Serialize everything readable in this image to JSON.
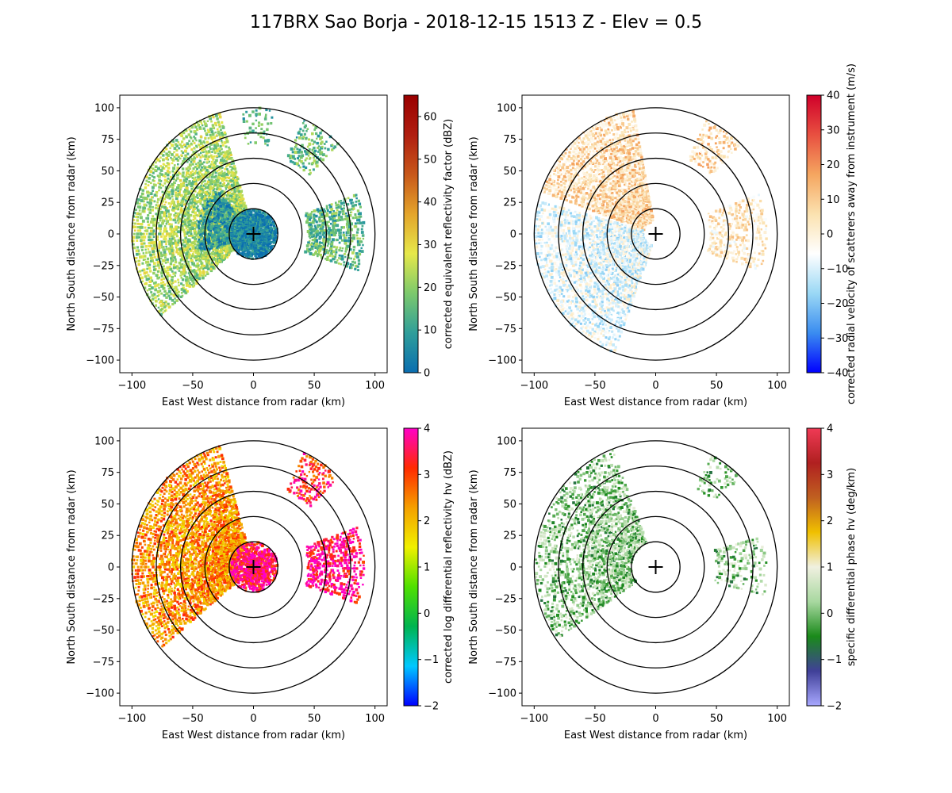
{
  "figure": {
    "title": "117BRX Sao Borja - 2018-12-15 1513 Z -  Elev = 0.5"
  },
  "chart_data": [
    {
      "type": "heatmap",
      "field": "reflectivity",
      "title": "",
      "xlabel": "East West distance from radar (km)",
      "ylabel": "North South distance from radar (km)",
      "xlim": [
        -110,
        110
      ],
      "ylim": [
        -110,
        110
      ],
      "xticks": [
        -100,
        -50,
        0,
        50,
        100
      ],
      "yticks": [
        -100,
        -75,
        -50,
        -25,
        0,
        25,
        50,
        75,
        100
      ],
      "range_rings_km": [
        20,
        40,
        60,
        80,
        100
      ],
      "radar_marker": "+",
      "colorbar": {
        "label": "corrected equivalent reflectivity factor (dBZ)",
        "min": 0,
        "max": 65,
        "ticks": [
          0,
          10,
          20,
          30,
          40,
          50,
          60
        ],
        "colormap": [
          "#0a6eb0",
          "#2f9e9a",
          "#7cc96c",
          "#e6e84a",
          "#e4a52b",
          "#c8581a",
          "#b01e10",
          "#9a0000"
        ]
      },
      "echo_regions": [
        {
          "sector": "west",
          "az_from": 230,
          "az_to": 345,
          "r_from": 0,
          "r_to": 100,
          "value": 22,
          "density": 0.85
        },
        {
          "sector": "center",
          "az_from": 0,
          "az_to": 360,
          "r_from": 0,
          "r_to": 18,
          "value": 4,
          "density": 0.6
        },
        {
          "sector": "west-inner",
          "az_from": 250,
          "az_to": 320,
          "r_from": 15,
          "r_to": 45,
          "value": 8,
          "density": 0.7
        },
        {
          "sector": "east",
          "az_from": 70,
          "az_to": 110,
          "r_from": 45,
          "r_to": 90,
          "value": 15,
          "density": 0.75
        },
        {
          "sector": "northeast",
          "az_from": 25,
          "az_to": 45,
          "r_from": 65,
          "r_to": 100,
          "value": 15,
          "density": 0.6
        },
        {
          "sector": "north",
          "az_from": 355,
          "az_to": 10,
          "r_from": 70,
          "r_to": 100,
          "value": 14,
          "density": 0.3
        }
      ]
    },
    {
      "type": "heatmap",
      "field": "velocity",
      "title": "",
      "xlabel": "East West distance from radar (km)",
      "ylabel": "North South distance from radar (km)",
      "xlim": [
        -110,
        110
      ],
      "ylim": [
        -110,
        110
      ],
      "xticks": [
        -100,
        -50,
        0,
        50,
        100
      ],
      "yticks": [
        -100,
        -75,
        -50,
        -25,
        0,
        25,
        50,
        75,
        100
      ],
      "range_rings_km": [
        20,
        40,
        60,
        80,
        100
      ],
      "radar_marker": "+",
      "colorbar": {
        "label": "corrected radial velocity of scatterers away from instrument (m/s)",
        "min": -40,
        "max": 40,
        "ticks": [
          -40,
          -30,
          -20,
          -10,
          0,
          10,
          20,
          30,
          40
        ],
        "colormap": [
          "#0000ff",
          "#3a8cf0",
          "#9ad8f5",
          "#ffffff",
          "#fbe2b0",
          "#f5a660",
          "#e85040",
          "#d0002a"
        ]
      },
      "echo_regions": [
        {
          "sector": "northwest",
          "az_from": 290,
          "az_to": 350,
          "r_from": 10,
          "r_to": 100,
          "value": 7,
          "density": 0.85
        },
        {
          "sector": "southwest",
          "az_from": 200,
          "az_to": 285,
          "r_from": 10,
          "r_to": 100,
          "value": -8,
          "density": 0.85
        },
        {
          "sector": "east",
          "az_from": 70,
          "az_to": 110,
          "r_from": 45,
          "r_to": 90,
          "value": 2,
          "density": 0.55
        },
        {
          "sector": "northeast",
          "az_from": 25,
          "az_to": 45,
          "r_from": 65,
          "r_to": 100,
          "value": 8,
          "density": 0.5
        }
      ]
    },
    {
      "type": "heatmap",
      "field": "differential_reflectivity",
      "title": "",
      "xlabel": "East West distance from radar (km)",
      "ylabel": "North South distance from radar (km)",
      "xlim": [
        -110,
        110
      ],
      "ylim": [
        -110,
        110
      ],
      "xticks": [
        -100,
        -50,
        0,
        50,
        100
      ],
      "yticks": [
        -100,
        -75,
        -50,
        -25,
        0,
        25,
        50,
        75,
        100
      ],
      "range_rings_km": [
        20,
        40,
        60,
        80,
        100
      ],
      "radar_marker": "+",
      "colorbar": {
        "label": "corrected log differential reflectivity hv (dBZ)",
        "min": -2,
        "max": 4,
        "ticks": [
          -2,
          -1,
          0,
          1,
          2,
          3,
          4
        ],
        "colormap": [
          "#0000ff",
          "#00c8ff",
          "#00b450",
          "#50e000",
          "#f0f000",
          "#f5a000",
          "#ff2a00",
          "#ff00c8"
        ]
      },
      "echo_regions": [
        {
          "sector": "west",
          "az_from": 230,
          "az_to": 345,
          "r_from": 15,
          "r_to": 100,
          "value": 2.4,
          "density": 0.85
        },
        {
          "sector": "center",
          "az_from": 0,
          "az_to": 360,
          "r_from": 0,
          "r_to": 18,
          "value": 3.6,
          "density": 0.35
        },
        {
          "sector": "east",
          "az_from": 70,
          "az_to": 110,
          "r_from": 45,
          "r_to": 90,
          "value": 3.7,
          "density": 0.7
        },
        {
          "sector": "northeast",
          "az_from": 25,
          "az_to": 45,
          "r_from": 65,
          "r_to": 100,
          "value": 3.2,
          "density": 0.6
        }
      ]
    },
    {
      "type": "heatmap",
      "field": "specific_differential_phase",
      "title": "",
      "xlabel": "East West distance from radar (km)",
      "ylabel": "North South distance from radar (km)",
      "xlim": [
        -110,
        110
      ],
      "ylim": [
        -110,
        110
      ],
      "xticks": [
        -100,
        -50,
        0,
        50,
        100
      ],
      "yticks": [
        -100,
        -75,
        -50,
        -25,
        0,
        25,
        50,
        75,
        100
      ],
      "range_rings_km": [
        20,
        40,
        60,
        80,
        100
      ],
      "radar_marker": "+",
      "colorbar": {
        "label": "specific differential phase hv (deg/km)",
        "min": -2,
        "max": 4,
        "ticks": [
          -2,
          -1,
          0,
          1,
          2,
          3,
          4
        ],
        "colormap": [
          "#a8a8ff",
          "#404098",
          "#1a8a1a",
          "#a8d8a0",
          "#f0f0e0",
          "#f0c000",
          "#c06020",
          "#b02020",
          "#f03a55"
        ]
      },
      "echo_regions": [
        {
          "sector": "west",
          "az_from": 235,
          "az_to": 340,
          "r_from": 20,
          "r_to": 98,
          "value": 0.1,
          "density": 0.6
        },
        {
          "sector": "east",
          "az_from": 75,
          "az_to": 105,
          "r_from": 50,
          "r_to": 90,
          "value": 0.1,
          "density": 0.4
        },
        {
          "sector": "northeast",
          "az_from": 28,
          "az_to": 45,
          "r_from": 70,
          "r_to": 100,
          "value": 0.1,
          "density": 0.45
        }
      ]
    }
  ]
}
